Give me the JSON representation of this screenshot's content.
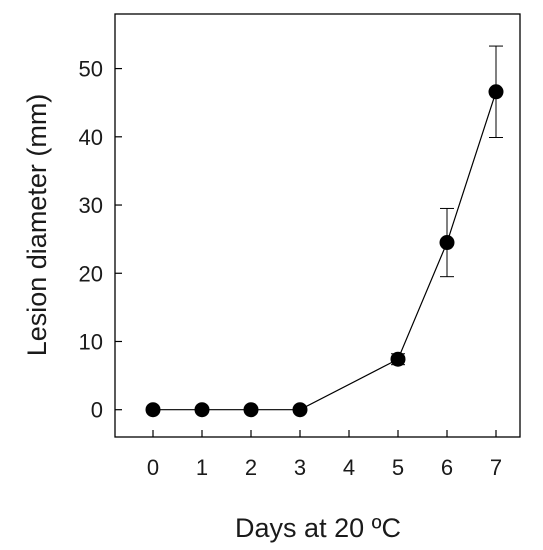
{
  "chart_data": {
    "type": "line",
    "xlabel": "Days at 20 ºC",
    "ylabel": "Lesion diameter (mm)",
    "xticks": [
      "0",
      "1",
      "2",
      "3",
      "4",
      "5",
      "6",
      "7"
    ],
    "yticks": [
      0,
      10,
      20,
      30,
      40,
      50
    ],
    "ylim": [
      -4,
      58
    ],
    "grid": false,
    "series": [
      {
        "x": [
          "0",
          "1",
          "2",
          "3",
          "5",
          "6",
          "7"
        ],
        "values": [
          0,
          0,
          0,
          0,
          7.4,
          24.5,
          46.6
        ],
        "error": [
          0,
          0,
          0,
          0,
          0.8,
          5.0,
          6.7
        ],
        "marker": "filled-circle",
        "color": "#000000"
      }
    ]
  }
}
